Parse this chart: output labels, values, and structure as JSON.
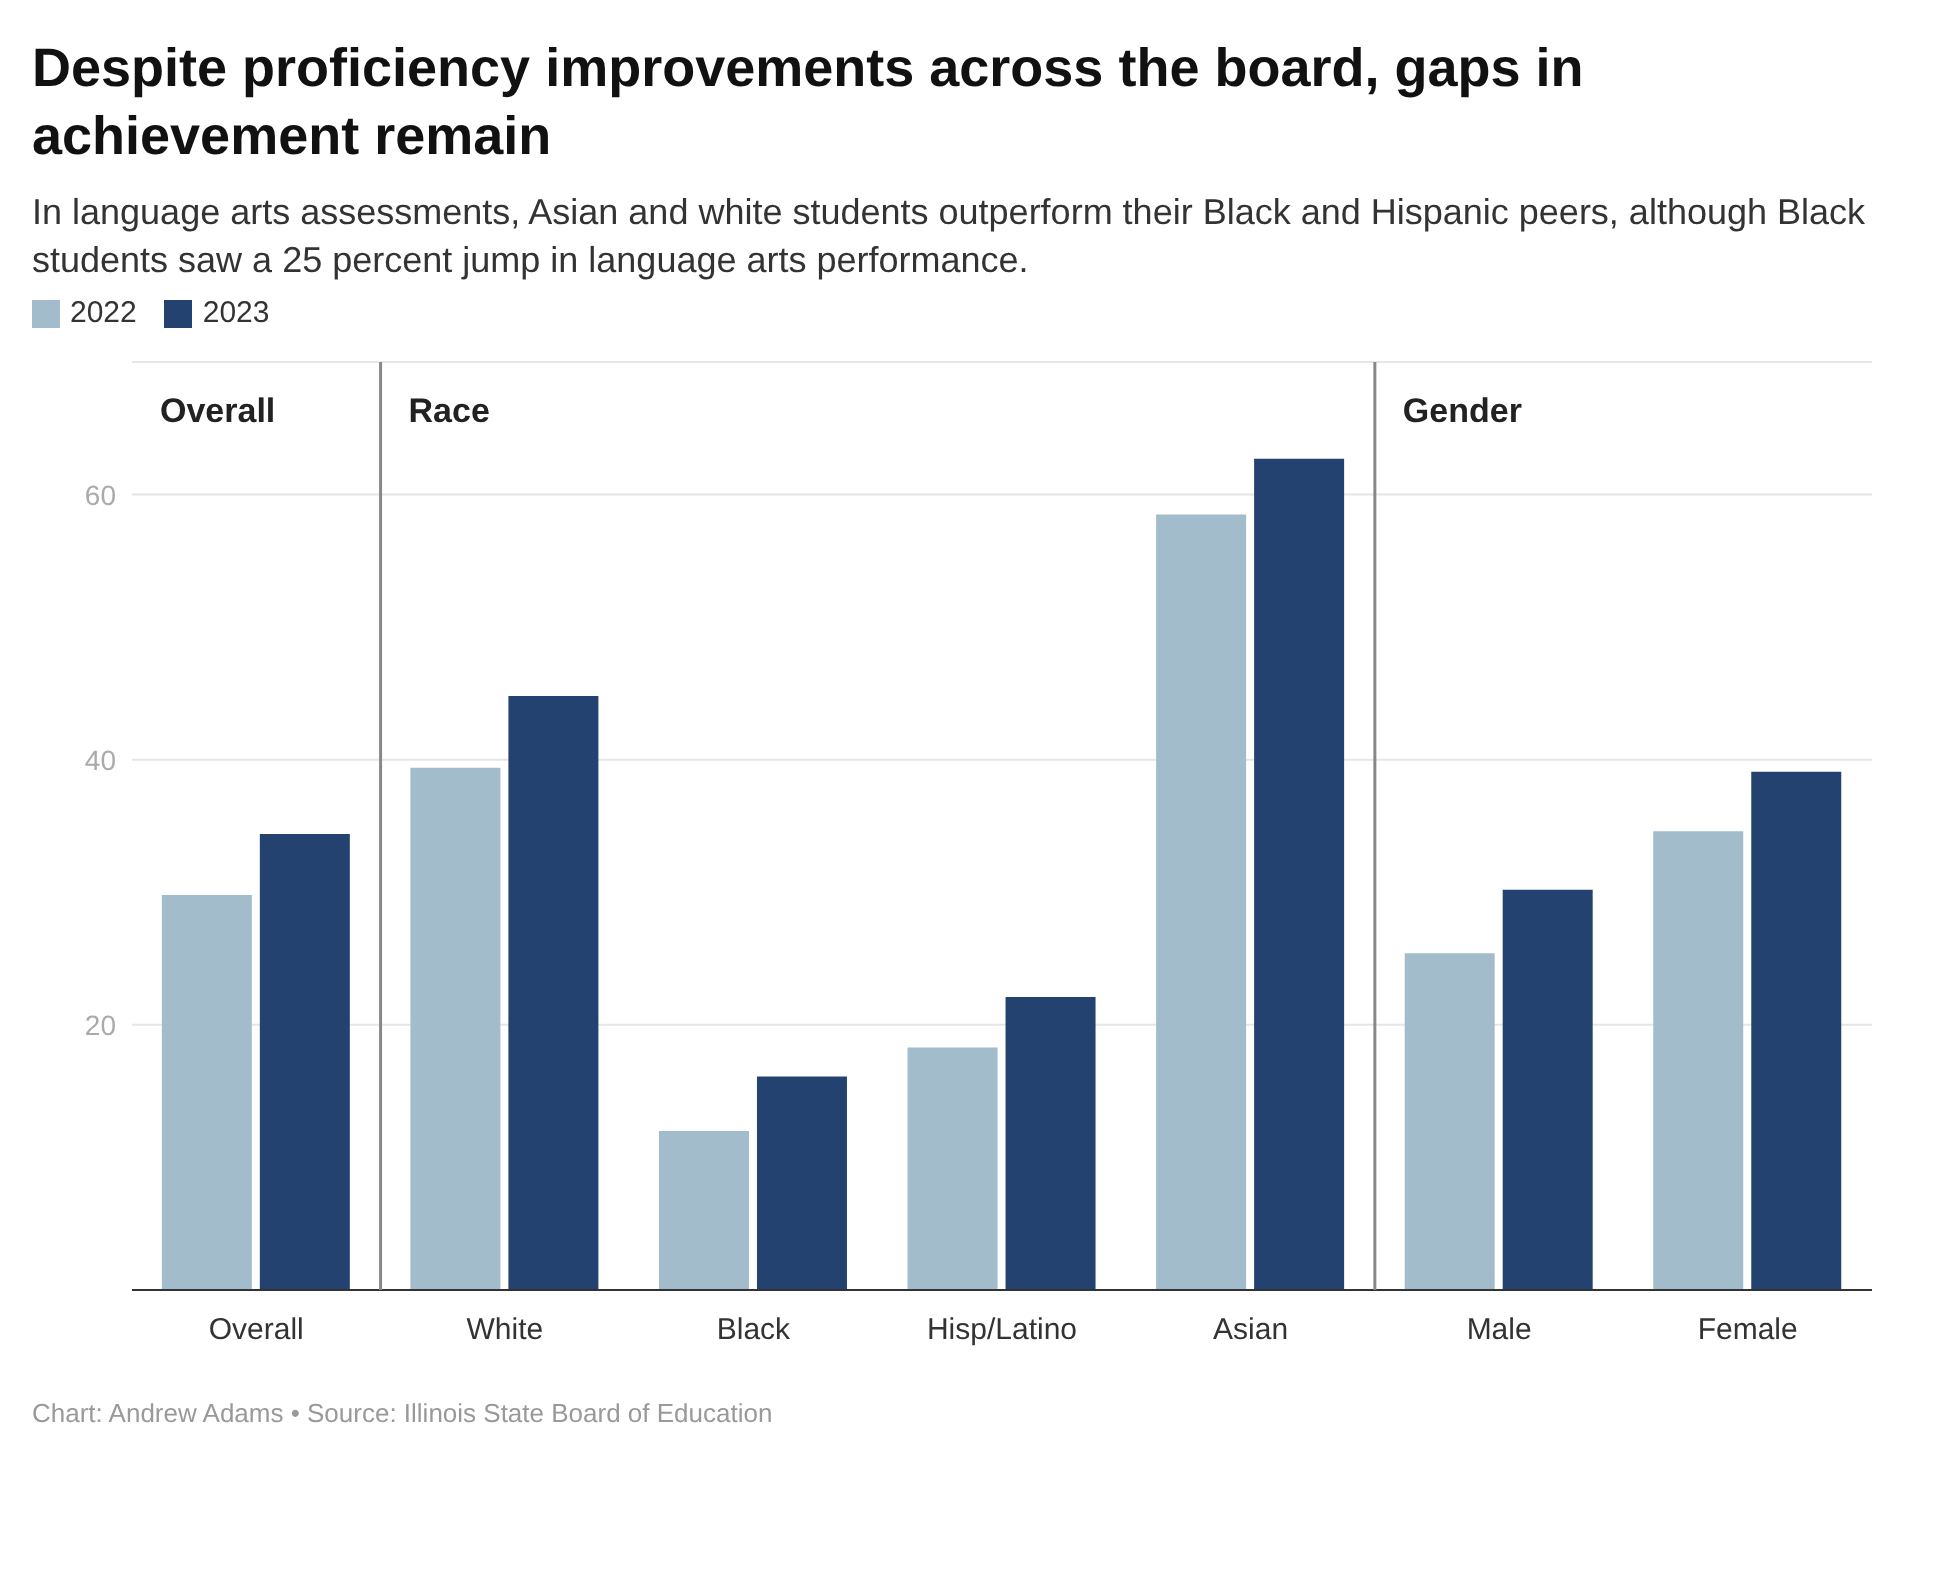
{
  "chart_data": {
    "type": "bar",
    "title": "Despite proficiency improvements across the board, gaps in achievement remain",
    "subtitle": "In language arts assessments, Asian and white students outperform their Black and Hispanic peers, although Black students saw a 25 percent jump in language arts performance.",
    "categories": [
      "Overall",
      "White",
      "Black",
      "Hisp/Latino",
      "Asian",
      "Male",
      "Female"
    ],
    "series": [
      {
        "name": "2022",
        "color": "#a3bccb",
        "values": [
          29.8,
          39.4,
          12.0,
          18.3,
          58.5,
          25.4,
          34.6
        ]
      },
      {
        "name": "2023",
        "color": "#23426f",
        "values": [
          34.4,
          44.8,
          16.1,
          22.1,
          62.7,
          30.2,
          39.1
        ]
      }
    ],
    "ylim": [
      0,
      70
    ],
    "yticks": [
      20,
      40,
      60
    ],
    "grid": "y",
    "legend": "top left",
    "annotations": [
      "Overall",
      "Race",
      "Gender",
      "Chart: Andrew Adams • Source: Illinois State Board of Education"
    ]
  }
}
